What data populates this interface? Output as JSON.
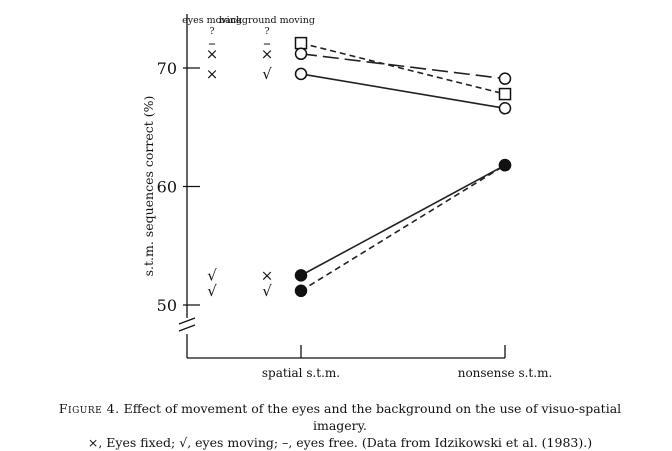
{
  "chart_data": {
    "type": "line",
    "ylabel": "s.t.m. sequences correct (%)",
    "categories": [
      "spatial s.t.m.",
      "nonsense s.t.m."
    ],
    "yticks": [
      50,
      60,
      70
    ],
    "ylim": [
      48,
      74.5
    ],
    "y_axis_break": true,
    "legend_headers": [
      "eyes moving ?",
      "background moving ?"
    ],
    "legend_rows": [
      {
        "eyes": "–",
        "background": "–",
        "marker": "square-open",
        "dash": "dashed"
      },
      {
        "eyes": "×",
        "background": "×",
        "marker": "circle-open",
        "dash": "longdash"
      },
      {
        "eyes": "×",
        "background": "√",
        "marker": "circle-open",
        "dash": "solid"
      },
      {
        "eyes": "√",
        "background": "×",
        "marker": "circle-filled",
        "dash": "solid"
      },
      {
        "eyes": "√",
        "background": "√",
        "marker": "circle-filled",
        "dash": "dashed"
      }
    ],
    "series": [
      {
        "values": [
          72.1,
          67.8
        ],
        "marker": "square-open",
        "dash": "dashed"
      },
      {
        "values": [
          71.2,
          69.1
        ],
        "marker": "circle-open",
        "dash": "longdash"
      },
      {
        "values": [
          69.5,
          66.6
        ],
        "marker": "circle-open",
        "dash": "solid"
      },
      {
        "values": [
          52.5,
          61.8
        ],
        "marker": "circle-filled",
        "dash": "solid"
      },
      {
        "values": [
          51.2,
          61.8
        ],
        "marker": "circle-filled",
        "dash": "dashed"
      }
    ]
  },
  "caption": {
    "label": "Figure 4.",
    "line1": "Effect of movement of the eyes and the background on the use of visuo-spatial imagery.",
    "line2": "×, Eyes fixed; √, eyes moving; –, eyes free. (Data from Idzikowski et al. (1983).)"
  }
}
